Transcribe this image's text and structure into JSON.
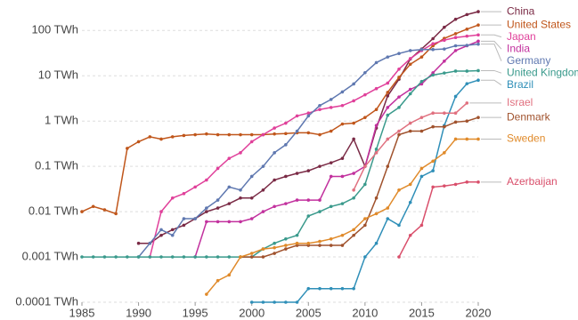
{
  "chart_data": {
    "type": "line",
    "log_y": true,
    "grid": true,
    "legend": "right",
    "x": [
      1985,
      1986,
      1987,
      1988,
      1989,
      1990,
      1991,
      1992,
      1993,
      1994,
      1995,
      1996,
      1997,
      1998,
      1999,
      2000,
      2001,
      2002,
      2003,
      2004,
      2005,
      2006,
      2007,
      2008,
      2009,
      2010,
      2011,
      2012,
      2013,
      2014,
      2015,
      2016,
      2017,
      2018,
      2019,
      2020
    ],
    "xlim": [
      1985,
      2020
    ],
    "xticks": [
      1985,
      1990,
      1995,
      2000,
      2005,
      2010,
      2015,
      2020
    ],
    "ylim": [
      0.0001,
      300
    ],
    "yticks": [
      {
        "value": 0.0001,
        "label": "0.0001 TWh"
      },
      {
        "value": 0.001,
        "label": "0.001 TWh"
      },
      {
        "value": 0.01,
        "label": "0.01 TWh"
      },
      {
        "value": 0.1,
        "label": "0.1 TWh"
      },
      {
        "value": 1,
        "label": "1 TWh"
      },
      {
        "value": 10,
        "label": "10 TWh"
      },
      {
        "value": 100,
        "label": "100 TWh"
      }
    ],
    "series": [
      {
        "name": "China",
        "color": "#7a2a45",
        "values": [
          null,
          null,
          null,
          null,
          null,
          0.002,
          0.002,
          0.003,
          0.004,
          0.005,
          0.007,
          0.01,
          0.012,
          0.015,
          0.02,
          0.02,
          0.03,
          0.05,
          0.06,
          0.07,
          0.08,
          0.1,
          0.12,
          0.15,
          0.4,
          0.1,
          0.7,
          3.6,
          8.4,
          23.5,
          39,
          66,
          118,
          177,
          225,
          261
        ]
      },
      {
        "name": "United States",
        "color": "#c0561b",
        "values": [
          0.01,
          0.013,
          0.011,
          0.009,
          0.25,
          0.35,
          0.45,
          0.4,
          0.45,
          0.48,
          0.5,
          0.52,
          0.5,
          0.5,
          0.5,
          0.5,
          0.5,
          0.52,
          0.53,
          0.55,
          0.55,
          0.5,
          0.6,
          0.86,
          0.9,
          1.2,
          1.8,
          4.3,
          9.2,
          18,
          26,
          46,
          67,
          85,
          107,
          132
        ]
      },
      {
        "name": "Japan",
        "color": "#e0409a",
        "values": [
          null,
          null,
          null,
          null,
          null,
          null,
          0.001,
          0.01,
          0.02,
          0.025,
          0.035,
          0.05,
          0.09,
          0.15,
          0.2,
          0.35,
          0.5,
          0.7,
          0.9,
          1.3,
          1.5,
          1.8,
          2,
          2.2,
          2.8,
          3.8,
          5.2,
          6.9,
          14,
          24,
          36,
          51,
          61,
          70,
          75,
          80
        ]
      },
      {
        "name": "India",
        "color": "#c2319e",
        "values": [
          null,
          null,
          null,
          null,
          null,
          null,
          null,
          null,
          null,
          null,
          0.001,
          0.006,
          0.006,
          0.006,
          0.006,
          0.007,
          0.01,
          0.013,
          0.015,
          0.018,
          0.018,
          0.018,
          0.06,
          0.06,
          0.07,
          0.1,
          0.8,
          2,
          3.4,
          5,
          6.6,
          11.6,
          21,
          36,
          46,
          58
        ]
      },
      {
        "name": "Germany",
        "color": "#5f78b0",
        "values": [
          null,
          null,
          null,
          null,
          null,
          0.001,
          0.002,
          0.004,
          0.003,
          0.007,
          0.007,
          0.012,
          0.018,
          0.035,
          0.03,
          0.06,
          0.1,
          0.2,
          0.3,
          0.6,
          1.3,
          2.2,
          3,
          4.4,
          6.6,
          11.7,
          19.6,
          26,
          31,
          36,
          38,
          38,
          39,
          46,
          47,
          50
        ]
      },
      {
        "name": "United Kingdom",
        "color": "#3a9a8c",
        "values": [
          0.001,
          0.001,
          0.001,
          0.001,
          0.001,
          0.001,
          0.001,
          0.001,
          0.001,
          0.001,
          0.001,
          0.001,
          0.001,
          0.001,
          0.001,
          0.001,
          0.0015,
          0.002,
          0.0025,
          0.003,
          0.008,
          0.01,
          0.013,
          0.015,
          0.02,
          0.04,
          0.24,
          1.35,
          2,
          4,
          7.5,
          10.4,
          11.5,
          12.7,
          12.7,
          13
        ]
      },
      {
        "name": "Brazil",
        "color": "#2f8fb8",
        "values": [
          null,
          null,
          null,
          null,
          null,
          null,
          null,
          null,
          null,
          null,
          null,
          null,
          null,
          null,
          null,
          0.0001,
          0.0001,
          0.0001,
          0.0001,
          0.0001,
          0.0002,
          0.0002,
          0.0002,
          0.0002,
          0.0002,
          0.001,
          0.002,
          0.007,
          0.005,
          0.016,
          0.06,
          0.08,
          0.8,
          3.5,
          6.7,
          8
        ]
      },
      {
        "name": "Israel",
        "color": "#e0707f",
        "values": [
          null,
          null,
          null,
          null,
          null,
          null,
          null,
          null,
          null,
          null,
          null,
          null,
          null,
          null,
          null,
          null,
          null,
          null,
          null,
          null,
          null,
          null,
          null,
          null,
          0.03,
          0.1,
          0.2,
          0.4,
          0.6,
          0.9,
          1.2,
          1.5,
          1.5,
          1.5,
          2.5,
          null
        ]
      },
      {
        "name": "Denmark",
        "color": "#a0522d",
        "values": [
          null,
          null,
          null,
          null,
          null,
          null,
          null,
          null,
          null,
          null,
          null,
          null,
          null,
          null,
          0.001,
          0.001,
          0.001,
          0.0012,
          0.0015,
          0.0018,
          0.0018,
          0.0018,
          0.0018,
          0.0018,
          0.003,
          0.005,
          0.02,
          0.1,
          0.5,
          0.6,
          0.6,
          0.75,
          0.75,
          0.95,
          1,
          1.2
        ]
      },
      {
        "name": "Sweden",
        "color": "#e08a2a",
        "values": [
          null,
          null,
          null,
          null,
          null,
          null,
          null,
          null,
          null,
          null,
          null,
          0.00015,
          0.0003,
          0.0004,
          0.001,
          0.0012,
          0.0015,
          0.0016,
          0.0018,
          0.002,
          0.002,
          0.0022,
          0.0025,
          0.003,
          0.004,
          0.007,
          0.009,
          0.012,
          0.03,
          0.04,
          0.09,
          0.13,
          0.2,
          0.4,
          0.4,
          0.4
        ]
      },
      {
        "name": "Azerbaijan",
        "color": "#d94f6b",
        "values": [
          null,
          null,
          null,
          null,
          null,
          null,
          null,
          null,
          null,
          null,
          null,
          null,
          null,
          null,
          null,
          null,
          null,
          null,
          null,
          null,
          null,
          null,
          null,
          null,
          null,
          null,
          null,
          null,
          0.001,
          0.003,
          0.005,
          0.035,
          0.037,
          0.04,
          0.045,
          0.045
        ]
      }
    ]
  }
}
